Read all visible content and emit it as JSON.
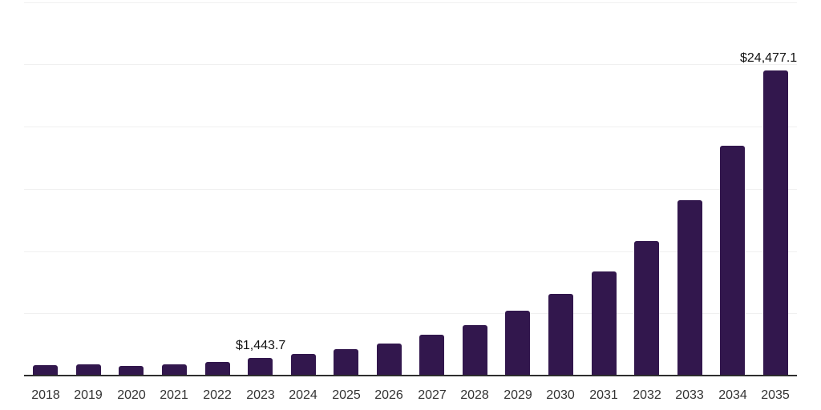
{
  "chart_data": {
    "type": "bar",
    "title": "",
    "xlabel": "",
    "ylabel": "",
    "categories": [
      "2018",
      "2019",
      "2020",
      "2021",
      "2022",
      "2023",
      "2024",
      "2025",
      "2026",
      "2027",
      "2028",
      "2029",
      "2030",
      "2031",
      "2032",
      "2033",
      "2034",
      "2035"
    ],
    "values": [
      840,
      930,
      770,
      900,
      1090,
      1443.7,
      1730,
      2120,
      2600,
      3250,
      4080,
      5180,
      6550,
      8350,
      10780,
      14100,
      18470,
      24477.1
    ],
    "data_labels": [
      {
        "category": "2023",
        "text": "$1,443.7"
      },
      {
        "category": "2035",
        "text": "$24,477.1"
      }
    ],
    "ylim": [
      0,
      30000
    ],
    "y_gridlines": [
      5000,
      10000,
      15000,
      20000,
      25000,
      30000
    ],
    "grid": true,
    "legend": "none",
    "y_axis_tick_labels": "none",
    "bar_color": "#32174D",
    "axis_line_color": "#2e2e2e",
    "gridline_color": "#f0f0f0",
    "x_label_color": "#333333",
    "data_label_color": "#111111"
  }
}
